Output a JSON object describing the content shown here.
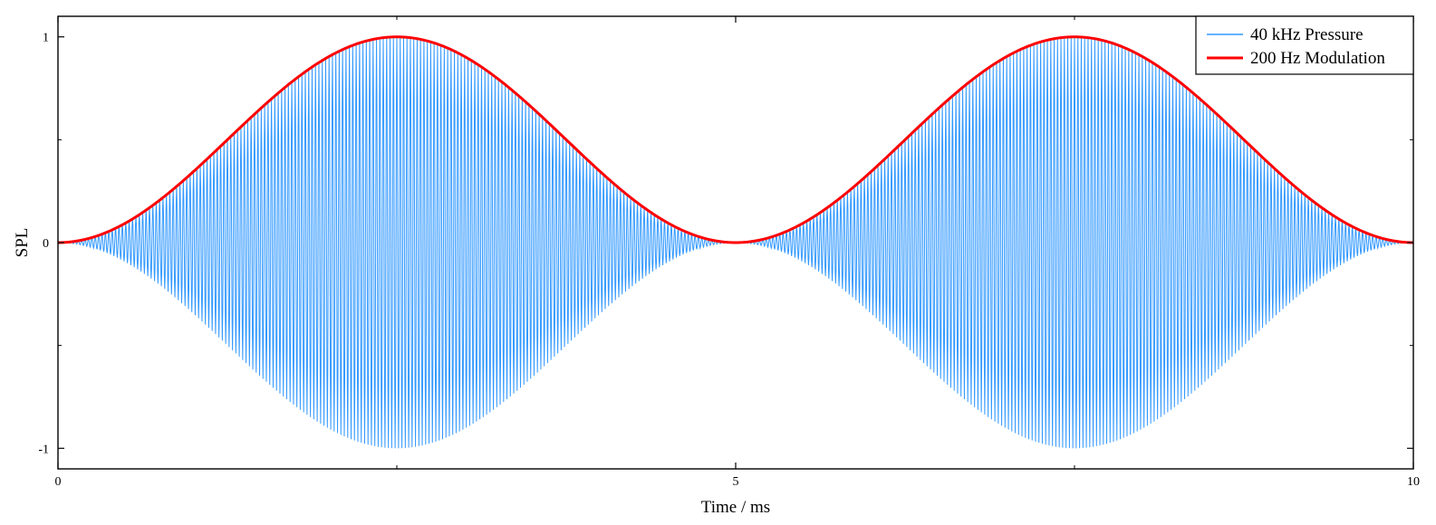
{
  "chart_data": {
    "type": "line",
    "title": "",
    "xlabel": "Time / ms",
    "ylabel": "SPL",
    "xlim": [
      0,
      10
    ],
    "ylim": [
      -1.1,
      1.1
    ],
    "xticks": [
      0,
      5,
      10
    ],
    "xtick_labels": [
      "0",
      "5",
      "10"
    ],
    "xticks_minor": [
      2.5,
      7.5
    ],
    "yticks": [
      -1,
      0,
      1
    ],
    "ytick_labels": [
      "-1",
      "0",
      "1"
    ],
    "yticks_minor": [
      -0.5,
      0.5
    ],
    "grid": false,
    "legend": {
      "position": "top-right"
    },
    "series": [
      {
        "name": "40 kHz Pressure",
        "color": "#3399ff",
        "carrier_frequency_khz": 40,
        "envelope": "sin^2(pi * 0.2 * t)"
      },
      {
        "name": "200 Hz Modulation",
        "color": "#ff0000",
        "modulation_frequency_hz": 200,
        "formula": "sin^2(pi * 0.2 * t)"
      }
    ]
  }
}
